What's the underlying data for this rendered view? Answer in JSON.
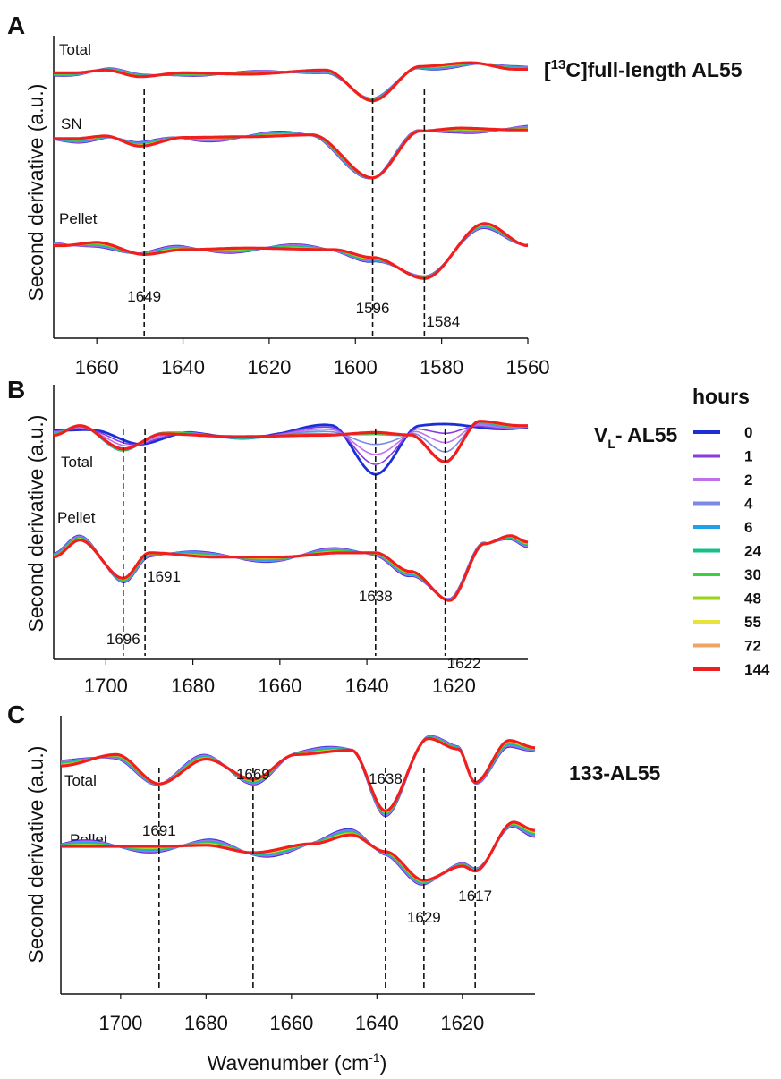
{
  "chart_data": [
    {
      "panel": "A",
      "type": "line",
      "protein": "[13C]full-length AL55",
      "ylabel": "Second derivative (a.u.)",
      "xlim": [
        1670,
        1560
      ],
      "xticks": [
        1660,
        1640,
        1620,
        1600,
        1580,
        1560
      ],
      "traces": [
        {
          "label": "Total",
          "features": [
            [
              1665,
              0.02
            ],
            [
              1658,
              0.12
            ],
            [
              1650,
              -0.12
            ],
            [
              1640,
              0.02
            ],
            [
              1625,
              -0.03
            ],
            [
              1607,
              0.12
            ],
            [
              1596,
              -1.0
            ],
            [
              1585,
              0.22
            ],
            [
              1573,
              0.38
            ],
            [
              1563,
              0.15
            ]
          ]
        },
        {
          "label": "SN",
          "features": [
            [
              1665,
              0.05
            ],
            [
              1658,
              0.12
            ],
            [
              1650,
              -0.15
            ],
            [
              1640,
              0.08
            ],
            [
              1625,
              0.1
            ],
            [
              1610,
              0.15
            ],
            [
              1596,
              -1.0
            ],
            [
              1585,
              0.22
            ],
            [
              1575,
              0.32
            ],
            [
              1562,
              0.28
            ]
          ]
        },
        {
          "label": "Pellet",
          "features": [
            [
              1668,
              0.1
            ],
            [
              1660,
              0.18
            ],
            [
              1649,
              -0.12
            ],
            [
              1640,
              0.0
            ],
            [
              1625,
              0.04
            ],
            [
              1605,
              0.0
            ],
            [
              1596,
              -0.2
            ],
            [
              1584,
              -0.75
            ],
            [
              1570,
              0.65
            ],
            [
              1560,
              0.1
            ]
          ]
        }
      ],
      "peaks": [
        1649,
        1596,
        1584
      ]
    },
    {
      "panel": "B",
      "type": "line",
      "protein": "VL- AL55",
      "ylabel": "Second derivative (a.u.)",
      "xlim": [
        1712,
        1603
      ],
      "xticks": [
        1700,
        1680,
        1660,
        1640,
        1620
      ],
      "traces": [
        {
          "label": "Total",
          "features": [
            [
              1712,
              0.05
            ],
            [
              1706,
              0.4
            ],
            [
              1696,
              -0.45
            ],
            [
              1687,
              0.1
            ],
            [
              1670,
              0.0
            ],
            [
              1650,
              0.05
            ],
            [
              1638,
              0.15
            ],
            [
              1630,
              0.05
            ],
            [
              1622,
              -0.95
            ],
            [
              1614,
              0.55
            ],
            [
              1605,
              0.4
            ]
          ]
        },
        {
          "label": "Pellet",
          "features": [
            [
              1712,
              0.05
            ],
            [
              1706,
              0.45
            ],
            [
              1696,
              -0.45
            ],
            [
              1690,
              0.15
            ],
            [
              1675,
              0.05
            ],
            [
              1660,
              0.05
            ],
            [
              1646,
              0.15
            ],
            [
              1638,
              0.15
            ],
            [
              1630,
              -0.3
            ],
            [
              1621,
              -1.0
            ],
            [
              1613,
              0.35
            ],
            [
              1607,
              0.55
            ],
            [
              1603,
              0.4
            ]
          ]
        }
      ],
      "zero_hour_trace": {
        "label": "Total",
        "features": [
          [
            1712,
            0.1
          ],
          [
            1702,
            0.3
          ],
          [
            1691,
            -0.25
          ],
          [
            1680,
            0.05
          ],
          [
            1670,
            0.05
          ],
          [
            1660,
            0.1
          ],
          [
            1648,
            0.35
          ],
          [
            1638,
            -1.25
          ],
          [
            1628,
            0.35
          ],
          [
            1618,
            0.38
          ],
          [
            1605,
            0.4
          ]
        ]
      },
      "peaks": [
        1696,
        1691,
        1638,
        1622
      ]
    },
    {
      "panel": "C",
      "type": "line",
      "protein": "133-AL55",
      "ylabel": "Second derivative (a.u.)",
      "xlabel": "Wavenumber (cm-1)",
      "xlim": [
        1714,
        1603
      ],
      "xticks": [
        1700,
        1680,
        1660,
        1640,
        1620
      ],
      "traces": [
        {
          "label": "Total",
          "features": [
            [
              1714,
              0.0
            ],
            [
              1701,
              0.25
            ],
            [
              1691,
              -0.4
            ],
            [
              1680,
              0.15
            ],
            [
              1669,
              -0.3
            ],
            [
              1659,
              0.25
            ],
            [
              1646,
              0.35
            ],
            [
              1638,
              -1.0
            ],
            [
              1628,
              0.6
            ],
            [
              1621,
              0.35
            ],
            [
              1617,
              -0.4
            ],
            [
              1609,
              0.55
            ],
            [
              1603,
              0.4
            ]
          ]
        },
        {
          "label": "Pellet",
          "features": [
            [
              1714,
              0.0
            ],
            [
              1700,
              0.0
            ],
            [
              1691,
              0.0
            ],
            [
              1680,
              0.02
            ],
            [
              1669,
              -0.12
            ],
            [
              1655,
              0.05
            ],
            [
              1646,
              0.22
            ],
            [
              1638,
              -0.1
            ],
            [
              1629,
              -0.65
            ],
            [
              1620,
              -0.4
            ],
            [
              1617,
              -0.5
            ],
            [
              1608,
              0.45
            ],
            [
              1603,
              0.3
            ]
          ]
        }
      ],
      "peaks": [
        1691,
        1669,
        1638,
        1629,
        1617
      ]
    }
  ],
  "legend": {
    "title": "hours",
    "items": [
      {
        "label": "0",
        "color": "#1a2fd6"
      },
      {
        "label": "1",
        "color": "#8a3be0"
      },
      {
        "label": "2",
        "color": "#c070e8"
      },
      {
        "label": "4",
        "color": "#7a88e6"
      },
      {
        "label": "6",
        "color": "#1ea0ea"
      },
      {
        "label": "24",
        "color": "#13c08a"
      },
      {
        "label": "30",
        "color": "#3ad03e"
      },
      {
        "label": "48",
        "color": "#9cd11c"
      },
      {
        "label": "55",
        "color": "#e9e23a"
      },
      {
        "label": "72",
        "color": "#f0a464"
      },
      {
        "label": "144",
        "color": "#f01f1f"
      }
    ]
  },
  "labels": {
    "panel_a": "A",
    "panel_b": "B",
    "panel_c": "C",
    "total": "Total",
    "sn": "SN",
    "pellet": "Pellet",
    "ylabel": "Second derivative (a.u.)",
    "xlabel_main": "Wavenumber (cm",
    "xlabel_sup": "-1",
    "xlabel_end": ")",
    "prot_a_pre": "[",
    "prot_a_sup": "13",
    "prot_a_post": "C]full-length AL55",
    "prot_b_main": "V",
    "prot_b_sub": "L",
    "prot_b_post": "- AL55",
    "prot_c": "133-AL55"
  }
}
